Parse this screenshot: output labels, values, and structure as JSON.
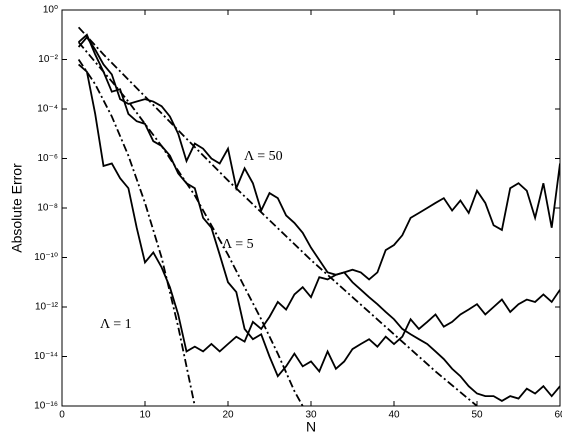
{
  "chart_data": {
    "type": "line",
    "x_label": "N",
    "y_label": "Absolute Error",
    "log_y": true,
    "grid": false,
    "xlim": [
      0,
      60
    ],
    "xticks": [
      0,
      10,
      20,
      30,
      40,
      50,
      60
    ],
    "ylim": [
      1e-16,
      1
    ],
    "yticks": [
      {
        "value": 1e-16,
        "label": "10⁻¹⁶"
      },
      {
        "value": 1e-14,
        "label": "10⁻¹⁴"
      },
      {
        "value": 1e-12,
        "label": "10⁻¹²"
      },
      {
        "value": 1e-10,
        "label": "10⁻¹⁰"
      },
      {
        "value": 1e-08,
        "label": "10⁻⁸"
      },
      {
        "value": 1e-06,
        "label": "10⁻⁶"
      },
      {
        "value": 0.0001,
        "label": "10⁻⁴"
      },
      {
        "value": 0.01,
        "label": "10⁻²"
      },
      {
        "value": 1,
        "label": "10⁰"
      }
    ],
    "annotations": [
      "Λ = 50",
      "Λ = 5",
      "Λ = 1"
    ],
    "series": [
      {
        "color": "#000000",
        "style": "solid",
        "x": [
          2,
          3,
          4,
          5,
          6,
          7,
          8,
          9,
          10,
          11,
          12,
          13,
          14,
          15,
          16,
          17,
          18,
          19,
          20,
          21,
          22,
          23,
          24,
          25,
          26,
          27,
          28,
          29,
          30,
          31,
          32,
          33,
          34,
          35,
          36,
          37,
          38,
          39,
          40,
          41,
          42,
          43,
          44,
          45,
          46,
          47,
          48,
          49,
          50,
          51,
          52,
          53,
          54,
          55,
          56,
          57,
          58,
          59,
          60
        ],
        "values": [
          0.032,
          0.079,
          0.025,
          0.0063,
          0.0025,
          0.00025,
          0.00016,
          0.0002,
          0.00025,
          0.0002,
          0.00013,
          5e-05,
          1e-05,
          7.9e-07,
          4e-06,
          2.5e-06,
          1e-06,
          6.3e-07,
          2.5e-06,
          6.3e-08,
          4e-07,
          1e-07,
          7.9e-09,
          4e-08,
          2.5e-08,
          5e-09,
          2.5e-09,
          1e-09,
          2.5e-10,
          7.9e-11,
          2.5e-11,
          2e-11,
          2.5e-11,
          1e-11,
          5e-12,
          2.5e-12,
          1.3e-12,
          6.3e-13,
          3.2e-13,
          1.3e-13,
          7.9e-14,
          5e-14,
          3.2e-14,
          1.6e-14,
          7.9e-15,
          3.2e-15,
          1.6e-15,
          6.3e-16,
          3.2e-16,
          2.5e-16,
          2.5e-16,
          1.6e-16,
          2.5e-16,
          2e-16,
          5e-16,
          3.2e-16,
          6.3e-16,
          2.5e-16,
          6.3e-16
        ]
      },
      {
        "color": "#000000",
        "style": "solid",
        "x": [
          2,
          3,
          4,
          5,
          6,
          7,
          8,
          9,
          10,
          11,
          12,
          13,
          14,
          15,
          16,
          17,
          18,
          19,
          20,
          21,
          22,
          23,
          24,
          25,
          26,
          27,
          28,
          29,
          30,
          31,
          32,
          33,
          34,
          35,
          36,
          37,
          38,
          39,
          40,
          41,
          42,
          43,
          44,
          45,
          46,
          47,
          48,
          49,
          50,
          51,
          52,
          53,
          54,
          55,
          56,
          57,
          58,
          59,
          60
        ],
        "values": [
          0.05,
          0.1,
          0.016,
          0.0032,
          0.0005,
          0.00063,
          6.3e-05,
          3.2e-05,
          2.5e-05,
          5e-06,
          3.2e-06,
          1.3e-06,
          2.5e-07,
          1e-07,
          6.3e-08,
          4e-09,
          1.6e-09,
          1.3e-10,
          1e-11,
          4e-12,
          1.3e-13,
          5e-14,
          7.9e-14,
          1e-14,
          1.6e-15,
          4e-15,
          1.3e-14,
          4e-15,
          6.3e-15,
          2.5e-15,
          1.6e-14,
          3.2e-15,
          6.3e-15,
          2e-14,
          3.2e-14,
          5e-14,
          2.5e-14,
          6.3e-14,
          3.2e-14,
          6.3e-14,
          3.2e-13,
          1.3e-13,
          2.5e-13,
          5e-13,
          1.6e-13,
          2.5e-13,
          5e-13,
          7.9e-13,
          1.3e-12,
          5e-13,
          1e-12,
          2e-12,
          6.3e-13,
          1.3e-12,
          2e-12,
          1.6e-12,
          3.2e-12,
          1.6e-12,
          5e-12
        ]
      },
      {
        "color": "#000000",
        "style": "solid",
        "x": [
          2,
          3,
          4,
          5,
          6,
          7,
          8,
          9,
          10,
          11,
          12,
          13,
          14,
          15,
          16,
          17,
          18,
          19,
          20,
          21,
          22,
          23,
          24,
          25,
          26,
          27,
          28,
          29,
          30,
          31,
          32,
          33,
          34,
          35,
          36,
          37,
          38,
          39,
          40,
          41,
          42,
          43,
          44,
          45,
          46,
          47,
          48,
          49,
          50,
          51,
          52,
          53,
          54,
          55,
          56,
          57,
          58,
          59,
          60
        ],
        "values": [
          0.0063,
          0.0032,
          6.3e-05,
          5e-07,
          6.3e-07,
          1.6e-07,
          6.3e-08,
          1.6e-09,
          6.3e-11,
          1.6e-10,
          4e-11,
          6.3e-12,
          5e-13,
          1.6e-14,
          2.5e-14,
          1.6e-14,
          3.2e-14,
          1.6e-14,
          3.2e-14,
          6.3e-14,
          4e-14,
          2.5e-13,
          1.3e-13,
          4e-13,
          1.6e-12,
          7.9e-13,
          3.2e-12,
          6.3e-12,
          2.5e-12,
          1.6e-11,
          1.3e-11,
          2e-11,
          2.5e-11,
          3.2e-11,
          2.5e-11,
          1.3e-11,
          2.5e-11,
          2e-10,
          3.2e-10,
          7.9e-10,
          4e-09,
          6.3e-09,
          1e-08,
          1.6e-08,
          2.5e-08,
          7.9e-09,
          2e-08,
          6.3e-09,
          5e-08,
          1.6e-08,
          2e-09,
          1.3e-09,
          6.3e-08,
          1e-07,
          5e-08,
          4e-09,
          1e-07,
          1.6e-09,
          6.3e-07
        ]
      },
      {
        "color": "#000000",
        "style": "dashdot",
        "x": [
          2,
          5,
          10,
          15,
          20,
          25,
          30,
          35,
          40,
          45,
          50
        ],
        "values": [
          0.2,
          0.016,
          0.00032,
          6.3e-06,
          1.3e-07,
          3.2e-09,
          7.9e-11,
          2.5e-12,
          7.9e-14,
          2.5e-15,
          1e-16
        ]
      },
      {
        "color": "#000000",
        "style": "dashdot",
        "x": [
          2,
          4,
          6,
          8,
          10,
          12,
          14,
          16,
          18,
          20,
          22,
          24,
          26,
          28,
          29
        ],
        "values": [
          0.05,
          0.0079,
          0.0013,
          0.0002,
          2.5e-05,
          3.2e-06,
          3.2e-07,
          3.2e-08,
          2e-09,
          1.3e-10,
          6.3e-12,
          3.2e-13,
          1.3e-14,
          4e-16,
          1e-16
        ]
      },
      {
        "color": "#000000",
        "style": "dashdot",
        "x": [
          2,
          4,
          6,
          8,
          10,
          12,
          14,
          16
        ],
        "values": [
          0.01,
          0.001,
          5e-05,
          1.3e-06,
          1.6e-08,
          1e-10,
          1.6e-13,
          1e-16
        ]
      }
    ]
  }
}
